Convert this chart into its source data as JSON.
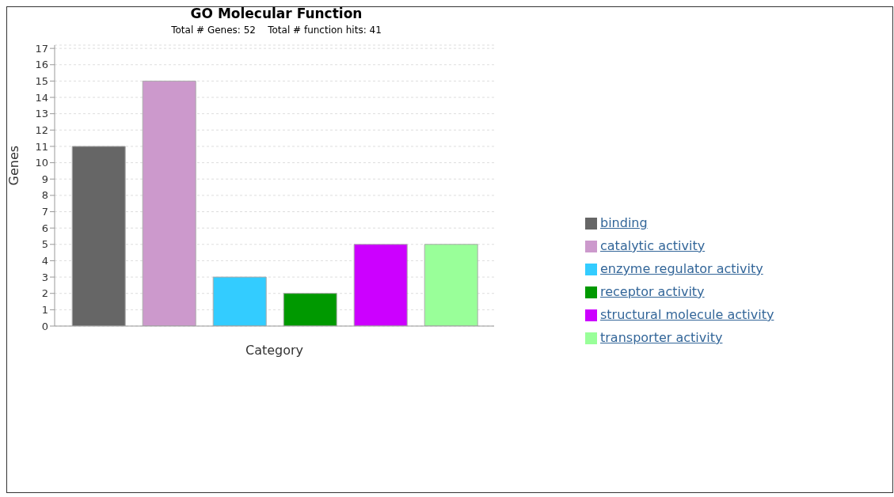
{
  "chart_data": {
    "type": "bar",
    "title": "GO Molecular Function",
    "subtitle": "Total # Genes: 52    Total # function hits: 41",
    "xlabel": "Category",
    "ylabel": "Genes",
    "categories": [
      null
    ],
    "series": [
      {
        "name": "binding",
        "color": "#666666",
        "values": [
          11
        ]
      },
      {
        "name": "catalytic activity",
        "color": "#cc99cc",
        "values": [
          15
        ]
      },
      {
        "name": "enzyme regulator activity",
        "color": "#33ccff",
        "values": [
          3
        ]
      },
      {
        "name": "receptor activity",
        "color": "#009900",
        "values": [
          2
        ]
      },
      {
        "name": "structural molecule activity",
        "color": "#cc00ff",
        "values": [
          5
        ]
      },
      {
        "name": "transporter activity",
        "color": "#99ff99",
        "values": [
          5
        ]
      }
    ],
    "ylim": [
      0,
      17.2
    ],
    "yticks": [
      0,
      1,
      2,
      3,
      4,
      5,
      6,
      7,
      8,
      9,
      10,
      11,
      12,
      13,
      14,
      15,
      16,
      17
    ],
    "grid": "y",
    "legend": "right"
  }
}
